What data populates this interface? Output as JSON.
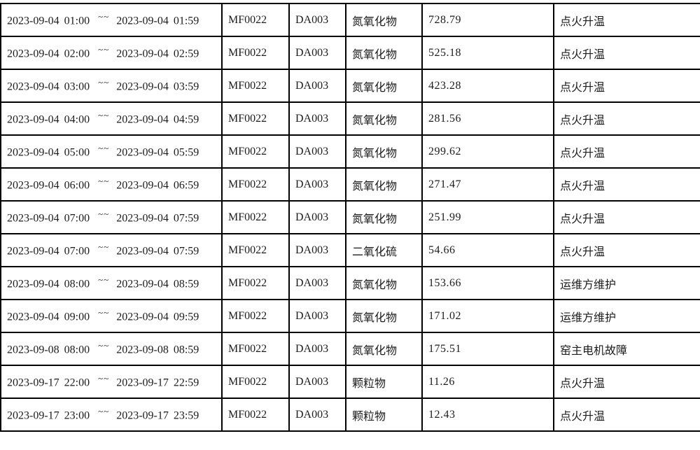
{
  "colors": {
    "background": "#ffffff",
    "border": "#000000",
    "text": "#1c1c1c"
  },
  "table": {
    "range_separator": "~~",
    "rows": [
      {
        "start": "2023-09-04 01:00",
        "end": "2023-09-04 01:59",
        "facility_code": "MF0022",
        "outlet_code": "DA003",
        "pollutant": "氮氧化物",
        "value": "728.79",
        "reason": "点火升温"
      },
      {
        "start": "2023-09-04 02:00",
        "end": "2023-09-04 02:59",
        "facility_code": "MF0022",
        "outlet_code": "DA003",
        "pollutant": "氮氧化物",
        "value": "525.18",
        "reason": "点火升温"
      },
      {
        "start": "2023-09-04 03:00",
        "end": "2023-09-04 03:59",
        "facility_code": "MF0022",
        "outlet_code": "DA003",
        "pollutant": "氮氧化物",
        "value": "423.28",
        "reason": "点火升温"
      },
      {
        "start": "2023-09-04 04:00",
        "end": "2023-09-04 04:59",
        "facility_code": "MF0022",
        "outlet_code": "DA003",
        "pollutant": "氮氧化物",
        "value": "281.56",
        "reason": "点火升温"
      },
      {
        "start": "2023-09-04 05:00",
        "end": "2023-09-04 05:59",
        "facility_code": "MF0022",
        "outlet_code": "DA003",
        "pollutant": "氮氧化物",
        "value": "299.62",
        "reason": "点火升温"
      },
      {
        "start": "2023-09-04 06:00",
        "end": "2023-09-04 06:59",
        "facility_code": "MF0022",
        "outlet_code": "DA003",
        "pollutant": "氮氧化物",
        "value": "271.47",
        "reason": "点火升温"
      },
      {
        "start": "2023-09-04 07:00",
        "end": "2023-09-04 07:59",
        "facility_code": "MF0022",
        "outlet_code": "DA003",
        "pollutant": "氮氧化物",
        "value": "251.99",
        "reason": "点火升温"
      },
      {
        "start": "2023-09-04 07:00",
        "end": "2023-09-04 07:59",
        "facility_code": "MF0022",
        "outlet_code": "DA003",
        "pollutant": "二氧化硫",
        "value": "54.66",
        "reason": "点火升温"
      },
      {
        "start": "2023-09-04 08:00",
        "end": "2023-09-04 08:59",
        "facility_code": "MF0022",
        "outlet_code": "DA003",
        "pollutant": "氮氧化物",
        "value": "153.66",
        "reason": "运维方维护"
      },
      {
        "start": "2023-09-04 09:00",
        "end": "2023-09-04 09:59",
        "facility_code": "MF0022",
        "outlet_code": "DA003",
        "pollutant": "氮氧化物",
        "value": "171.02",
        "reason": "运维方维护"
      },
      {
        "start": "2023-09-08 08:00",
        "end": "2023-09-08 08:59",
        "facility_code": "MF0022",
        "outlet_code": "DA003",
        "pollutant": "氮氧化物",
        "value": "175.51",
        "reason": "窑主电机故障"
      },
      {
        "start": "2023-09-17 22:00",
        "end": "2023-09-17 22:59",
        "facility_code": "MF0022",
        "outlet_code": "DA003",
        "pollutant": "颗粒物",
        "value": "11.26",
        "reason": "点火升温"
      },
      {
        "start": "2023-09-17 23:00",
        "end": "2023-09-17 23:59",
        "facility_code": "MF0022",
        "outlet_code": "DA003",
        "pollutant": "颗粒物",
        "value": "12.43",
        "reason": "点火升温"
      }
    ]
  }
}
